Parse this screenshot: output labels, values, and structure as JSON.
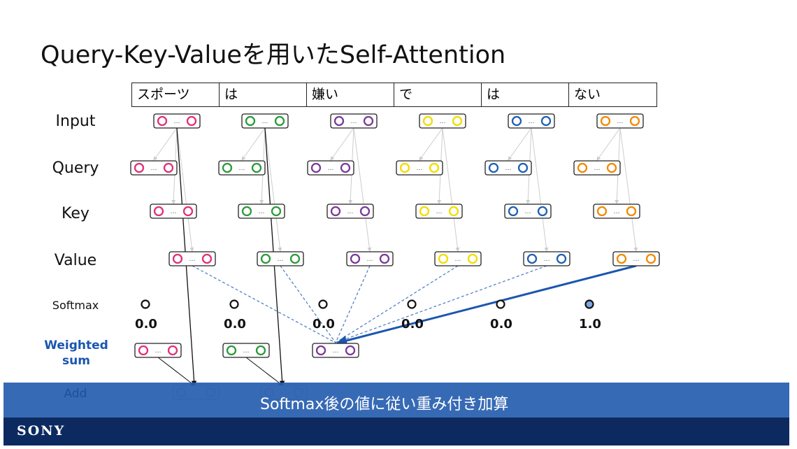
{
  "title": "Query-Key-Valueを用いたSelf-Attention",
  "tokens": [
    "スポーツ",
    "は",
    "嫌い",
    "で",
    "は",
    "ない"
  ],
  "rows": {
    "input": "Input",
    "query": "Query",
    "key": "Key",
    "value": "Value",
    "softmax": "Softmax",
    "weighted": "Weighted sum",
    "add": "Add"
  },
  "colors": [
    "#e0307a",
    "#2a9a3a",
    "#7b3a9a",
    "#f2dc00",
    "#1f5fb3",
    "#f08a00"
  ],
  "softmax_values": [
    "0.0",
    "0.0",
    "0.0",
    "0.0",
    "0.0",
    "1.0"
  ],
  "softmax_highlight_color": "#7fa6e0",
  "ellipsis": "…",
  "banner": "Softmax後の値に従い重み付き加算",
  "logo": "SONY"
}
